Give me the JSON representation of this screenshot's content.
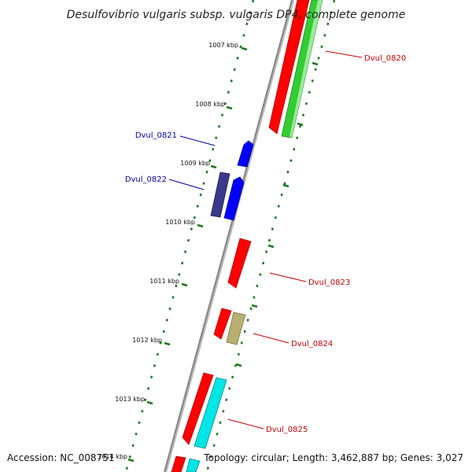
{
  "title": "Desulfovibrio vulgaris subsp. vulgaris DP4, complete genome",
  "footer": {
    "accession": "Accession: NC_008751",
    "topology": "Topology: circular; Length: 3,462,887 bp; Genes: 3,027"
  },
  "ticks": [
    "1007 kbp",
    "1008 kbp",
    "1009 kbp",
    "1010 kbp",
    "1011 kbp",
    "1012 kbp",
    "1013 kbp",
    "1014 kbp"
  ],
  "gene_labels": [
    {
      "text": "Dvul_0820",
      "color": "#cc0000"
    },
    {
      "text": "Dvul_0821",
      "color": "#0000aa"
    },
    {
      "text": "Dvul_0822",
      "color": "#0000aa"
    },
    {
      "text": "Dvul_0823",
      "color": "#cc0000"
    },
    {
      "text": "Dvul_0824",
      "color": "#cc0000"
    },
    {
      "text": "Dvul_0825",
      "color": "#cc0000"
    }
  ],
  "colors": {
    "backbone": "#888888",
    "tick_marks": "#1a7a1a",
    "red_feature": "#ff0000",
    "green_feature": "#33cc33",
    "blue_feature": "#0000ff",
    "navy_feature": "#3a3a8a",
    "olive_feature": "#b8b070",
    "cyan_feature": "#00e5e5",
    "red_label": "#cc0000",
    "blue_label": "#0000aa"
  }
}
